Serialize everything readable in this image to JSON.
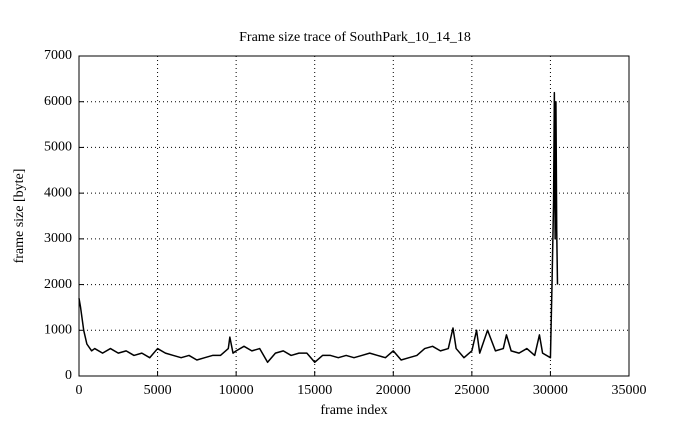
{
  "chart_data": {
    "type": "line",
    "title": "Frame size trace of SouthPark_10_14_18",
    "x_label": "frame index",
    "y_label": "frame size [byte]",
    "xlim": [
      0,
      35000
    ],
    "xticks": [
      0,
      5000,
      10000,
      15000,
      20000,
      25000,
      30000,
      35000
    ],
    "ylim": [
      0,
      7000
    ],
    "yticks": [
      0,
      1000,
      2000,
      3000,
      4000,
      5000,
      6000,
      7000
    ],
    "grid": true,
    "series": [
      {
        "color": "#000000",
        "x": [
          0,
          100,
          300,
          500,
          800,
          1000,
          1500,
          2000,
          2500,
          3000,
          3500,
          4000,
          4500,
          5000,
          5500,
          6000,
          6500,
          7000,
          7500,
          8000,
          8500,
          9000,
          9500,
          9600,
          9800,
          10000,
          10500,
          11000,
          11500,
          12000,
          12500,
          13000,
          13500,
          14000,
          14500,
          15000,
          15500,
          16000,
          16500,
          17000,
          17500,
          18000,
          18500,
          19000,
          19500,
          20000,
          20500,
          21000,
          21500,
          22000,
          22500,
          23000,
          23500,
          23800,
          24000,
          24500,
          25000,
          25300,
          25500,
          26000,
          26500,
          27000,
          27200,
          27500,
          28000,
          28500,
          29000,
          29300,
          29500,
          30000,
          30100,
          30200,
          30250,
          30300,
          30350,
          30400,
          30450
        ],
        "values": [
          1700,
          1500,
          1000,
          700,
          550,
          600,
          500,
          600,
          500,
          550,
          450,
          500,
          400,
          600,
          500,
          450,
          400,
          450,
          350,
          400,
          450,
          450,
          600,
          850,
          500,
          550,
          650,
          550,
          600,
          300,
          500,
          550,
          450,
          500,
          500,
          300,
          450,
          450,
          400,
          450,
          400,
          450,
          500,
          450,
          400,
          550,
          350,
          400,
          450,
          600,
          650,
          550,
          600,
          1050,
          600,
          400,
          550,
          1000,
          500,
          1000,
          550,
          600,
          900,
          550,
          500,
          600,
          450,
          900,
          500,
          400,
          2000,
          3800,
          6200,
          3000,
          6000,
          3200,
          2000
        ]
      }
    ]
  }
}
